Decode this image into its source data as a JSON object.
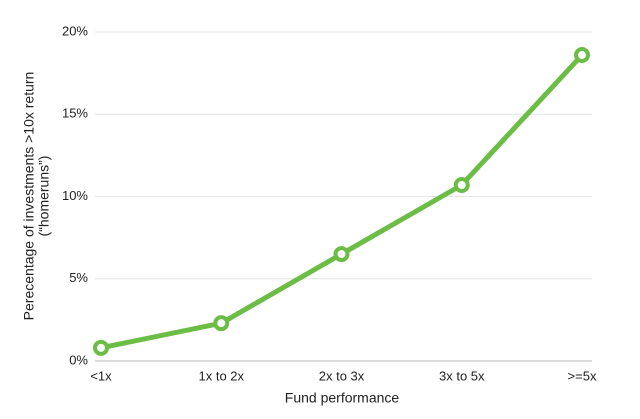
{
  "chart_data": {
    "type": "line",
    "xlabel": "Fund performance",
    "ylabel": [
      "Perecentage of investments >10x return",
      "(“homeruns”)"
    ],
    "categories": [
      "<1x",
      "1x to 2x",
      "2x to 3x",
      "3x to 5x",
      ">=5x"
    ],
    "series": [
      {
        "color": "#6cbd45",
        "values": [
          0.8,
          2.3,
          6.5,
          10.7,
          18.6
        ]
      }
    ],
    "ylim": [
      0,
      20
    ],
    "yticks": [
      {
        "value": 0,
        "label": "0%"
      },
      {
        "value": 5,
        "label": "5%"
      },
      {
        "value": 10,
        "label": "10%"
      },
      {
        "value": 15,
        "label": "15%"
      },
      {
        "value": 20,
        "label": "20%"
      }
    ],
    "grid": true
  }
}
